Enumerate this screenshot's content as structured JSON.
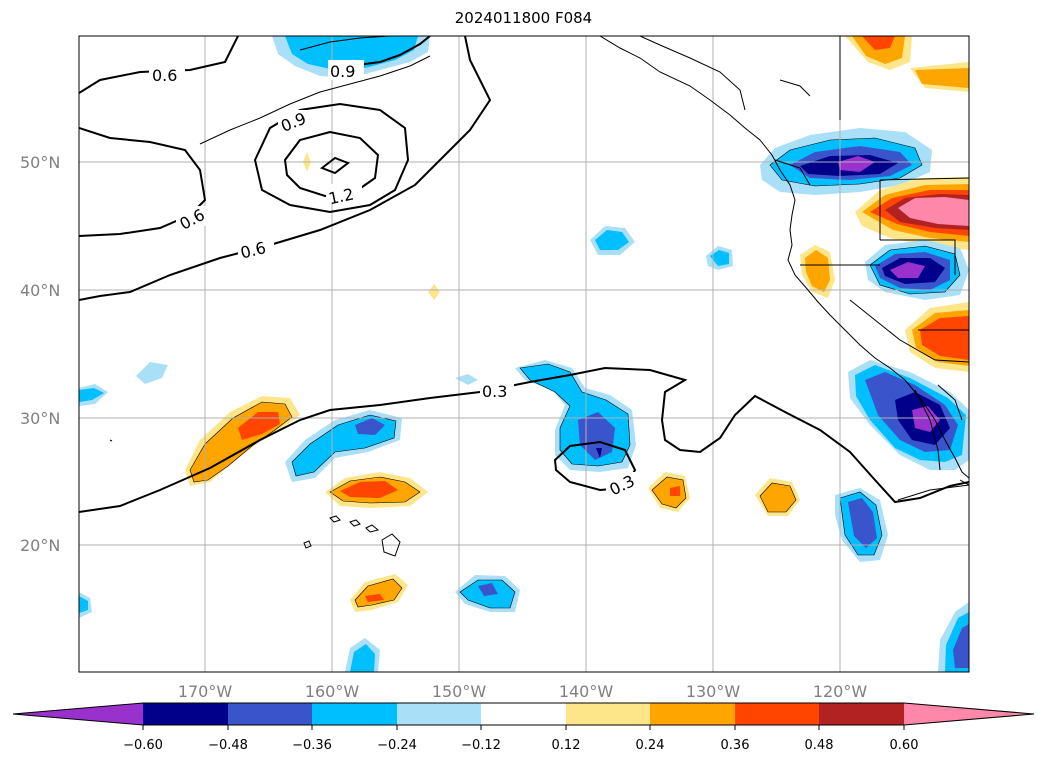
{
  "title": "2024011800 F084",
  "map": {
    "lat_ticks": [
      {
        "value": 50,
        "label": "50°N"
      },
      {
        "value": 40,
        "label": "40°N"
      },
      {
        "value": 30,
        "label": "30°N"
      },
      {
        "value": 20,
        "label": "20°N"
      }
    ],
    "lon_ticks": [
      {
        "value": -170,
        "label": "170°W"
      },
      {
        "value": -160,
        "label": "160°W"
      },
      {
        "value": -150,
        "label": "150°W"
      },
      {
        "value": -140,
        "label": "140°W"
      },
      {
        "value": -130,
        "label": "130°W"
      },
      {
        "value": -120,
        "label": "120°W"
      }
    ],
    "contour_labels": [
      "0.6",
      "0.9",
      "0.9",
      "1.2",
      "0.6",
      "0.6",
      "0.3",
      "0.3"
    ]
  },
  "colorbar": {
    "ticks": [
      "−0.60",
      "−0.48",
      "−0.36",
      "−0.24",
      "−0.12",
      "0.12",
      "0.24",
      "0.36",
      "0.48",
      "0.60"
    ],
    "colors": [
      "#9932cc",
      "#00008b",
      "#3a55cc",
      "#00bfff",
      "#aadff8",
      "#ffffff",
      "#fde68a",
      "#ffa500",
      "#ff4500",
      "#b22222",
      "#ff88aa"
    ]
  }
}
